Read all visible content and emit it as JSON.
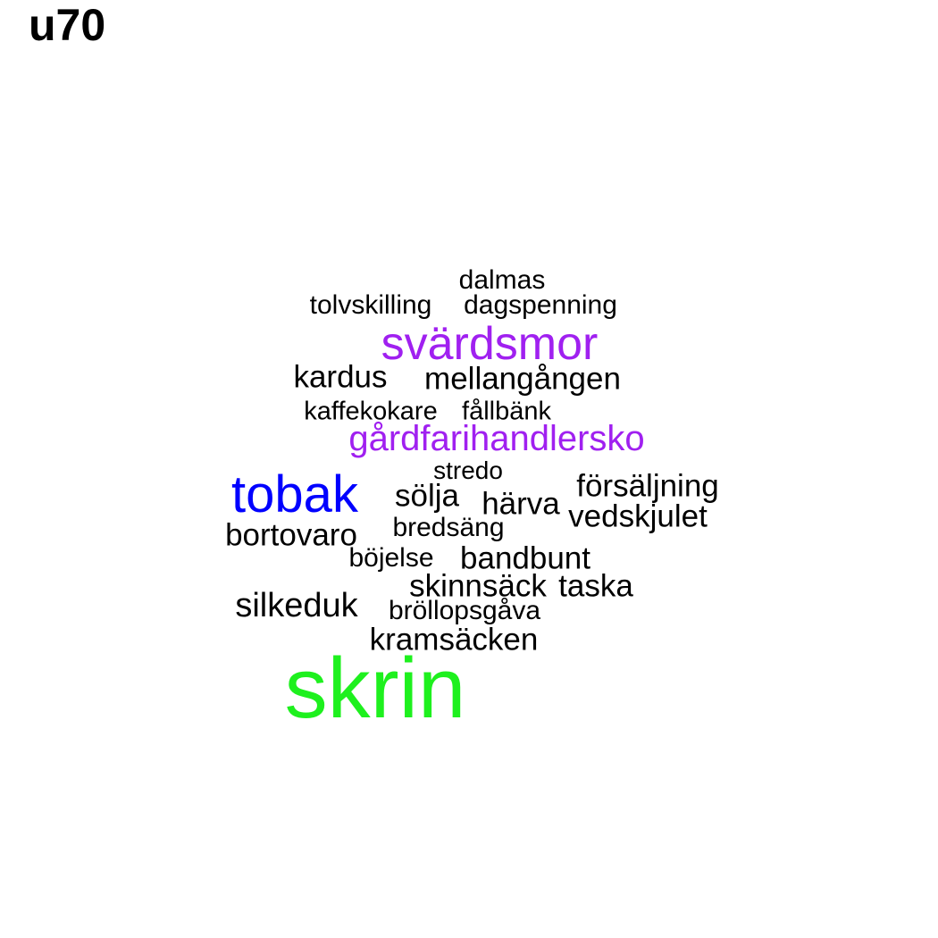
{
  "title": "u70",
  "colors": {
    "default": "#000000",
    "purple": "#a020f0",
    "blue": "#0000ff",
    "green": "#1ef01e"
  },
  "words": [
    {
      "text": "dalmas",
      "color": "#000000"
    },
    {
      "text": "tolvskilling",
      "color": "#000000"
    },
    {
      "text": "dagspenning",
      "color": "#000000"
    },
    {
      "text": "svärdsmor",
      "color": "#a020f0"
    },
    {
      "text": "kardus",
      "color": "#000000"
    },
    {
      "text": "mellangången",
      "color": "#000000"
    },
    {
      "text": "kaffekokare",
      "color": "#000000"
    },
    {
      "text": "fållbänk",
      "color": "#000000"
    },
    {
      "text": "gårdfarihandlersko",
      "color": "#a020f0"
    },
    {
      "text": "stredo",
      "color": "#000000"
    },
    {
      "text": "tobak",
      "color": "#0000ff"
    },
    {
      "text": "sölja",
      "color": "#000000"
    },
    {
      "text": "försäljning",
      "color": "#000000"
    },
    {
      "text": "härva",
      "color": "#000000"
    },
    {
      "text": "vedskjulet",
      "color": "#000000"
    },
    {
      "text": "bredsäng",
      "color": "#000000"
    },
    {
      "text": "bortovaro",
      "color": "#000000"
    },
    {
      "text": "böjelse",
      "color": "#000000"
    },
    {
      "text": "bandbunt",
      "color": "#000000"
    },
    {
      "text": "skinnsäck",
      "color": "#000000"
    },
    {
      "text": "taska",
      "color": "#000000"
    },
    {
      "text": "silkeduk",
      "color": "#000000"
    },
    {
      "text": "bröllopsgåva",
      "color": "#000000"
    },
    {
      "text": "kramsäcken",
      "color": "#000000"
    },
    {
      "text": "skrin",
      "color": "#1ef01e"
    }
  ]
}
